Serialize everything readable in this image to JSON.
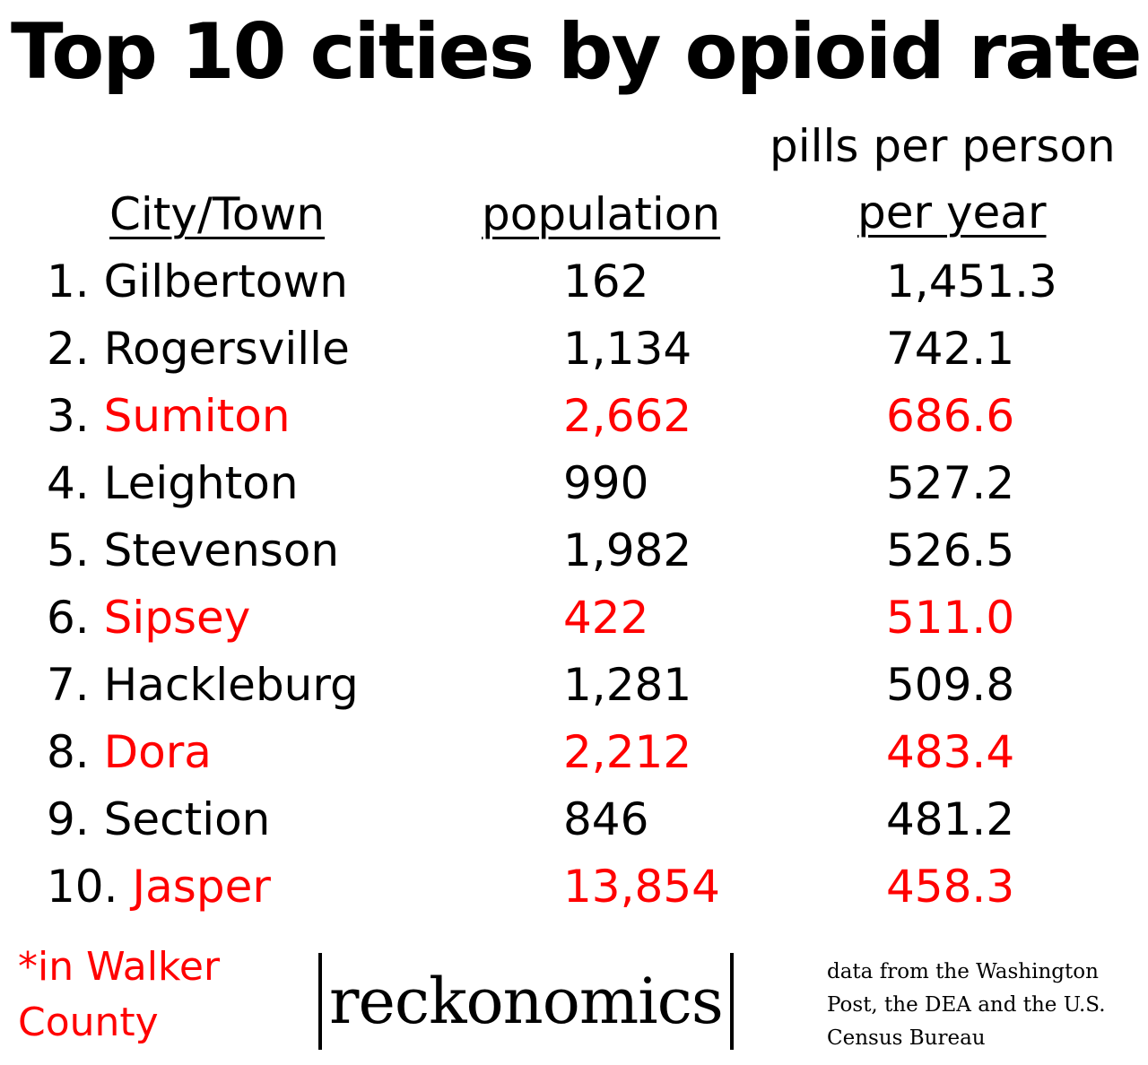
{
  "title": "Top 10 cities by opioid rate",
  "headers": {
    "city": "City/Town",
    "population": "population",
    "rate_line1": "pills per person",
    "rate_line2": "per year"
  },
  "highlight_color": "#ff0000",
  "chart_data": {
    "type": "table",
    "columns": [
      "City/Town",
      "population",
      "pills per person per year"
    ],
    "rows": [
      {
        "rank": "1.",
        "city": "Gilbertown",
        "population": "162",
        "rate": "1,451.3",
        "highlight": false
      },
      {
        "rank": "2.",
        "city": "Rogersville",
        "population": "1,134",
        "rate": "742.1",
        "highlight": false
      },
      {
        "rank": "3.",
        "city": "Sumiton",
        "population": "2,662",
        "rate": "686.6",
        "highlight": true
      },
      {
        "rank": "4.",
        "city": "Leighton",
        "population": "990",
        "rate": "527.2",
        "highlight": false
      },
      {
        "rank": "5.",
        "city": "Stevenson",
        "population": "1,982",
        "rate": "526.5",
        "highlight": false
      },
      {
        "rank": "6.",
        "city": "Sipsey",
        "population": "422",
        "rate": "511.0",
        "highlight": true
      },
      {
        "rank": "7.",
        "city": "Hackleburg",
        "population": "1,281",
        "rate": "509.8",
        "highlight": false
      },
      {
        "rank": "8.",
        "city": "Dora",
        "population": "2,212",
        "rate": "483.4",
        "highlight": true
      },
      {
        "rank": "9.",
        "city": "Section",
        "population": "846",
        "rate": "481.2",
        "highlight": false
      },
      {
        "rank": "10.",
        "city": "Jasper",
        "population": "13,854",
        "rate": "458.3",
        "highlight": true
      }
    ]
  },
  "footnote": "*in Walker County",
  "logo": "reckonomics",
  "source": "data from the Washington Post, the DEA and the U.S. Census Bureau"
}
